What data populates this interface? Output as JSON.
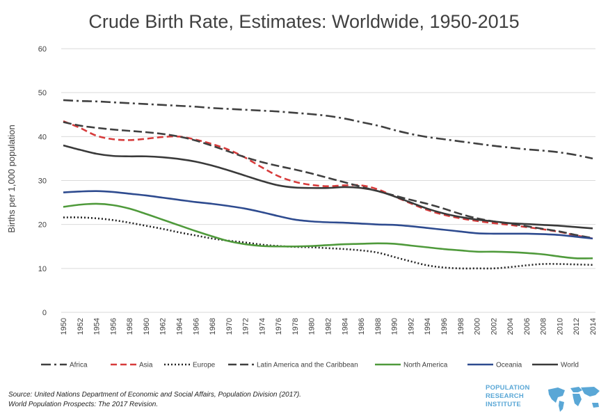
{
  "chart_data": {
    "type": "line",
    "title": "Crude Birth Rate, Estimates: Worldwide, 1950-2015",
    "xlabel": "",
    "ylabel": "Births per 1,000 population",
    "ylim": [
      0,
      60
    ],
    "yticks": [
      0,
      10,
      20,
      30,
      40,
      50,
      60
    ],
    "categories": [
      "1950",
      "1952",
      "1954",
      "1956",
      "1958",
      "1960",
      "1962",
      "1964",
      "1966",
      "1968",
      "1970",
      "1972",
      "1974",
      "1976",
      "1978",
      "1980",
      "1982",
      "1984",
      "1986",
      "1988",
      "1990",
      "1992",
      "1994",
      "1996",
      "1998",
      "2000",
      "2002",
      "2004",
      "2006",
      "2008",
      "2010",
      "2012",
      "2014"
    ],
    "grid": "horizontal",
    "legend_position": "bottom",
    "series": [
      {
        "name": "Africa",
        "color": "#404040",
        "dash": "dashdot",
        "values": [
          48.3,
          48.1,
          48.0,
          47.8,
          47.6,
          47.4,
          47.2,
          47.0,
          46.8,
          46.5,
          46.3,
          46.1,
          45.9,
          45.7,
          45.4,
          45.1,
          44.7,
          44.1,
          43.3,
          42.5,
          41.5,
          40.6,
          39.9,
          39.4,
          38.9,
          38.4,
          37.9,
          37.5,
          37.1,
          36.8,
          36.4,
          35.8,
          35.0
        ]
      },
      {
        "name": "Asia",
        "color": "#d73b3b",
        "dash": "dashed",
        "values": [
          43.5,
          42.0,
          40.2,
          39.4,
          39.2,
          39.5,
          39.9,
          40.0,
          39.3,
          38.3,
          37.0,
          35.2,
          33.0,
          31.0,
          29.7,
          29.0,
          28.7,
          28.9,
          28.9,
          28.0,
          26.4,
          24.8,
          23.3,
          22.2,
          21.4,
          20.8,
          20.3,
          19.9,
          19.4,
          18.9,
          18.3,
          17.5,
          16.8
        ]
      },
      {
        "name": "Europe",
        "color": "#222222",
        "dash": "dotted",
        "values": [
          21.6,
          21.6,
          21.4,
          21.0,
          20.4,
          19.7,
          19.0,
          18.2,
          17.5,
          16.8,
          16.3,
          15.9,
          15.4,
          15.1,
          14.9,
          14.8,
          14.6,
          14.4,
          14.1,
          13.6,
          12.6,
          11.6,
          10.7,
          10.2,
          10.0,
          10.0,
          10.0,
          10.3,
          10.7,
          11.0,
          11.0,
          10.9,
          10.8
        ]
      },
      {
        "name": "Latin America and the Caribbean",
        "color": "#404040",
        "dash": "longdash",
        "values": [
          43.3,
          42.5,
          42.0,
          41.6,
          41.3,
          41.0,
          40.6,
          40.0,
          39.1,
          37.9,
          36.6,
          35.3,
          34.2,
          33.3,
          32.5,
          31.6,
          30.6,
          29.6,
          28.6,
          27.6,
          26.6,
          25.6,
          24.7,
          23.6,
          22.4,
          21.4,
          20.7,
          20.2,
          19.6,
          19.0,
          18.4,
          17.6,
          16.9
        ]
      },
      {
        "name": "North America",
        "color": "#4f9a3b",
        "dash": "solid",
        "values": [
          24.0,
          24.5,
          24.7,
          24.4,
          23.6,
          22.4,
          21.1,
          19.8,
          18.5,
          17.3,
          16.2,
          15.5,
          15.1,
          15.0,
          15.0,
          15.1,
          15.3,
          15.5,
          15.6,
          15.7,
          15.6,
          15.2,
          14.8,
          14.4,
          14.1,
          13.8,
          13.8,
          13.7,
          13.5,
          13.2,
          12.7,
          12.3,
          12.3
        ]
      },
      {
        "name": "Oceania",
        "color": "#2e4b8f",
        "dash": "solid",
        "values": [
          27.3,
          27.5,
          27.6,
          27.4,
          27.0,
          26.6,
          26.1,
          25.6,
          25.1,
          24.7,
          24.2,
          23.6,
          22.8,
          21.9,
          21.1,
          20.7,
          20.5,
          20.4,
          20.2,
          20.0,
          19.9,
          19.6,
          19.2,
          18.8,
          18.4,
          18.0,
          17.9,
          17.9,
          17.9,
          17.8,
          17.6,
          17.2,
          16.8
        ]
      },
      {
        "name": "World",
        "color": "#3a3a3a",
        "dash": "solid",
        "values": [
          38.0,
          37.0,
          36.1,
          35.6,
          35.5,
          35.5,
          35.3,
          34.9,
          34.3,
          33.4,
          32.3,
          31.1,
          29.9,
          28.9,
          28.4,
          28.3,
          28.3,
          28.5,
          28.3,
          27.6,
          26.4,
          25.0,
          23.6,
          22.5,
          21.7,
          21.1,
          20.7,
          20.3,
          20.1,
          19.9,
          19.7,
          19.4,
          19.1
        ]
      }
    ]
  },
  "footer": {
    "source_line1": "Source: United Nations Department of Economic and Social Affairs, Population Division (2017).",
    "source_line2": "World Population Prospects: The 2017 Revision."
  },
  "logo": {
    "line1": "POPULATION",
    "line2": "RESEARCH",
    "line3": "INSTITUTE",
    "color": "#5aa7d6",
    "icon": "world-map-icon"
  }
}
